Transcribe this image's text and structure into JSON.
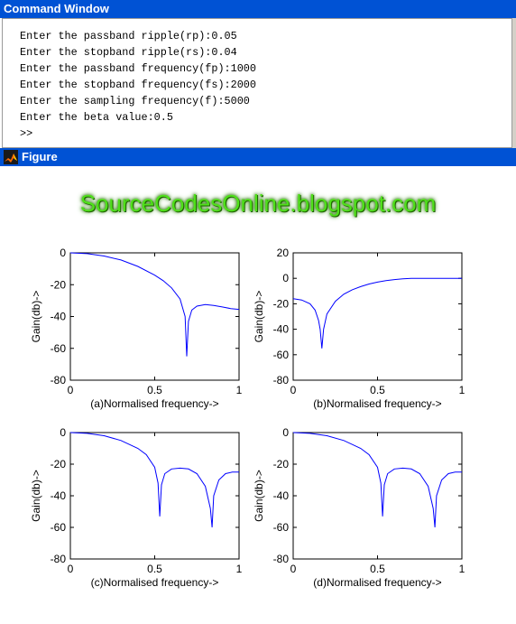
{
  "command_window": {
    "title": "Command Window",
    "lines": [
      "Enter the passband ripple(rp):0.05",
      "Enter the stopband ripple(rs):0.04",
      "Enter the passband frequency(fp):1000",
      "Enter the stopband frequency(fs):2000",
      "Enter the sampling frequency(f):5000",
      "Enter the beta value:0.5",
      ">>"
    ]
  },
  "figure_window": {
    "title": "Figure",
    "icon": "matlab-figure-icon",
    "watermark": "SourceCodesOnline.blogspot.com"
  },
  "colors": {
    "title_bar": "#0052d4",
    "curve": "#0000ff",
    "watermark": "#4fe01a"
  },
  "chart_data": [
    {
      "type": "line",
      "xlabel": "(a)Normalised frequency->",
      "ylabel": "Gain(db)->",
      "xlim": [
        0,
        1
      ],
      "ylim": [
        -80,
        0
      ],
      "xticks": [
        "0",
        "0.5",
        "1"
      ],
      "yticks": [
        "0",
        "-20",
        "-40",
        "-60",
        "-80"
      ],
      "series": [
        {
          "x": [
            0,
            0.1,
            0.2,
            0.3,
            0.4,
            0.5,
            0.55,
            0.6,
            0.65,
            0.68,
            0.69,
            0.7,
            0.72,
            0.75,
            0.8,
            0.85,
            0.9,
            0.95,
            1.0
          ],
          "y": [
            0,
            -0.5,
            -2,
            -4.5,
            -8.5,
            -14,
            -17.5,
            -22,
            -29,
            -40,
            -65,
            -43,
            -36,
            -33.5,
            -32.5,
            -33,
            -34,
            -35,
            -35.5
          ]
        }
      ]
    },
    {
      "type": "line",
      "xlabel": "(b)Normalised frequency->",
      "ylabel": "Gain(db)->",
      "xlim": [
        0,
        1
      ],
      "ylim": [
        -80,
        20
      ],
      "xticks": [
        "0",
        "0.5",
        "1"
      ],
      "yticks": [
        "20",
        "0",
        "-20",
        "-40",
        "-60",
        "-80"
      ],
      "series": [
        {
          "x": [
            0,
            0.05,
            0.1,
            0.13,
            0.15,
            0.16,
            0.17,
            0.18,
            0.2,
            0.25,
            0.3,
            0.35,
            0.4,
            0.45,
            0.5,
            0.55,
            0.6,
            0.65,
            0.7,
            0.8,
            0.9,
            1.0
          ],
          "y": [
            -16,
            -17,
            -20,
            -25,
            -33,
            -40,
            -55,
            -40,
            -28,
            -18,
            -12.5,
            -9,
            -6.5,
            -4.5,
            -3,
            -1.8,
            -1,
            -0.4,
            0,
            0,
            0,
            0
          ]
        }
      ]
    },
    {
      "type": "line",
      "xlabel": "(c)Normalised frequency->",
      "ylabel": "Gain(db)->",
      "xlim": [
        0,
        1
      ],
      "ylim": [
        -80,
        0
      ],
      "xticks": [
        "0",
        "0.5",
        "1"
      ],
      "yticks": [
        "0",
        "-20",
        "-40",
        "-60",
        "-80"
      ],
      "series": [
        {
          "x": [
            0,
            0.1,
            0.2,
            0.3,
            0.4,
            0.45,
            0.5,
            0.52,
            0.53,
            0.54,
            0.56,
            0.6,
            0.65,
            0.7,
            0.75,
            0.8,
            0.83,
            0.84,
            0.85,
            0.88,
            0.92,
            0.96,
            1.0
          ],
          "y": [
            0,
            -0.5,
            -2,
            -5,
            -10,
            -14,
            -22,
            -32,
            -53,
            -33,
            -26,
            -23,
            -22.5,
            -23,
            -26,
            -34,
            -48,
            -60,
            -40,
            -30,
            -26,
            -25,
            -25
          ]
        }
      ]
    },
    {
      "type": "line",
      "xlabel": "(d)Normalised frequency->",
      "ylabel": "Gain(db)->",
      "xlim": [
        0,
        1
      ],
      "ylim": [
        -80,
        0
      ],
      "xticks": [
        "0",
        "0.5",
        "1"
      ],
      "yticks": [
        "0",
        "-20",
        "-40",
        "-60",
        "-80"
      ],
      "series": [
        {
          "x": [
            0,
            0.1,
            0.2,
            0.3,
            0.4,
            0.45,
            0.5,
            0.52,
            0.53,
            0.54,
            0.56,
            0.6,
            0.65,
            0.7,
            0.75,
            0.8,
            0.83,
            0.84,
            0.85,
            0.88,
            0.92,
            0.96,
            1.0
          ],
          "y": [
            0,
            -0.5,
            -2,
            -5,
            -10,
            -14,
            -22,
            -32,
            -53,
            -33,
            -26,
            -23,
            -22.5,
            -23,
            -26,
            -34,
            -48,
            -60,
            -40,
            -30,
            -26,
            -25,
            -25
          ]
        }
      ]
    }
  ]
}
